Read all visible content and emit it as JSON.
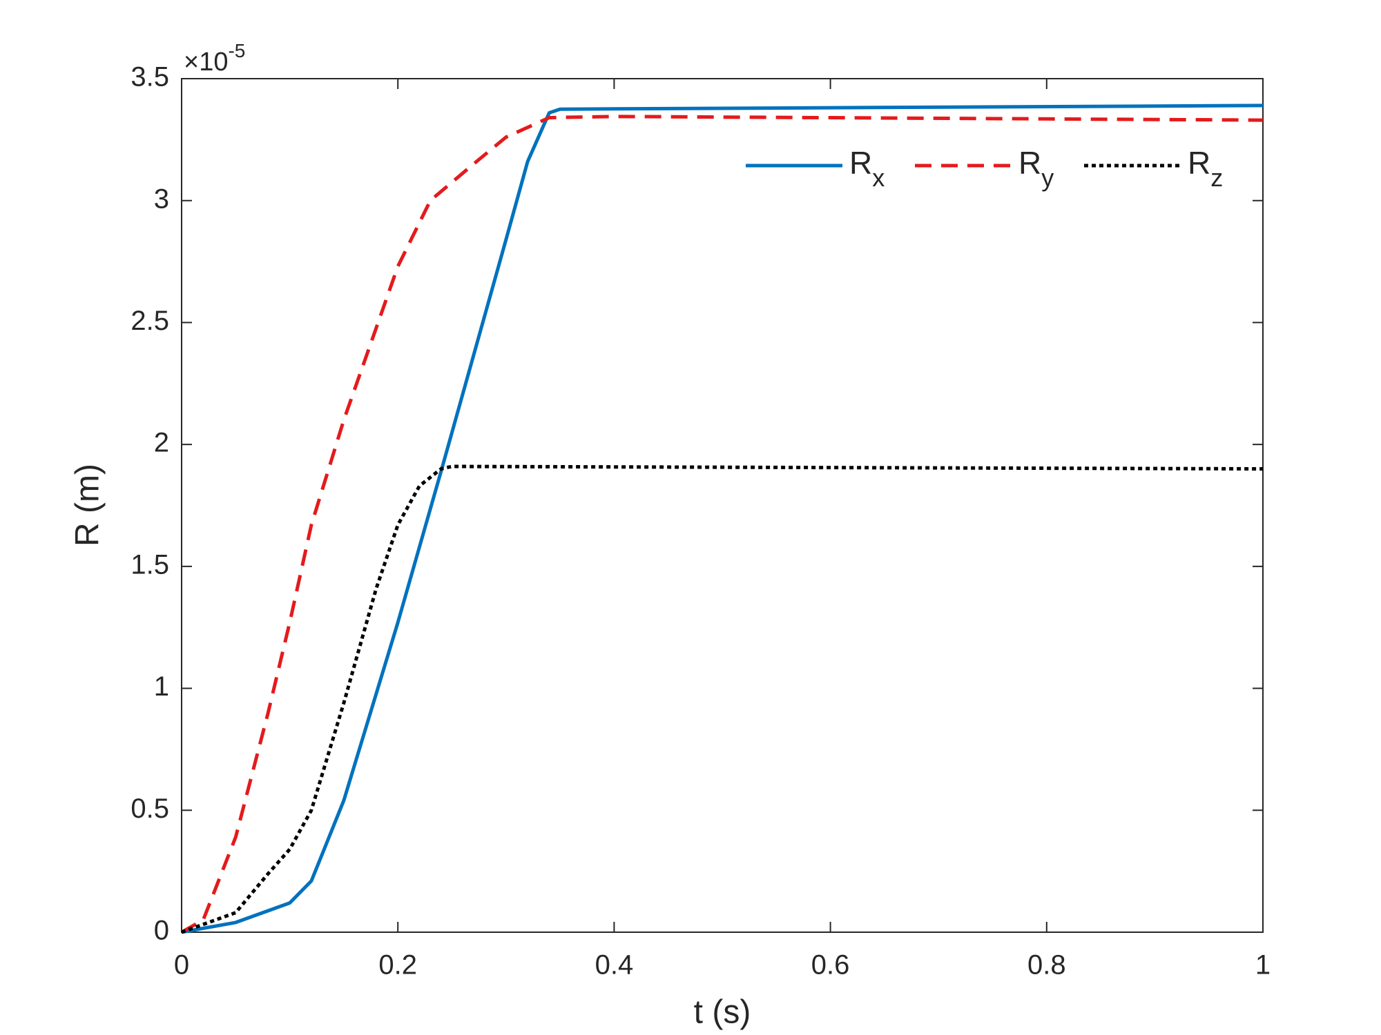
{
  "chart_data": {
    "type": "line",
    "xlabel": "t (s)",
    "ylabel": "R (m)",
    "y_multiplier_base": "×10",
    "y_multiplier_exponent": "-5",
    "xlim": [
      0,
      1
    ],
    "xticks": [
      0,
      0.2,
      0.4,
      0.6,
      0.8,
      1
    ],
    "ylim": [
      0,
      3.5
    ],
    "yticks": [
      0,
      0.5,
      1,
      1.5,
      2,
      2.5,
      3,
      3.5
    ],
    "grid": false,
    "legend": "upper right",
    "series": [
      {
        "name": "Rx",
        "color": "#0072bd",
        "dash": "solid",
        "x": [
          0,
          0.05,
          0.1,
          0.12,
          0.13,
          0.15,
          0.2,
          0.24,
          0.3,
          0.32,
          0.34,
          0.35,
          1
        ],
        "values": [
          0,
          0.04,
          0.12,
          0.21,
          0.32,
          0.54,
          1.27,
          1.89,
          2.84,
          3.16,
          3.36,
          3.375,
          3.39
        ]
      },
      {
        "name": "Ry",
        "color": "#e41a1c",
        "dash": "dashed",
        "x": [
          0,
          0.02,
          0.05,
          0.08,
          0.1,
          0.12,
          0.15,
          0.2,
          0.23,
          0.27,
          0.3,
          0.34,
          0.4,
          1
        ],
        "values": [
          0,
          0.05,
          0.39,
          0.9,
          1.27,
          1.67,
          2.1,
          2.73,
          3.0,
          3.15,
          3.26,
          3.34,
          3.345,
          3.33
        ]
      },
      {
        "name": "Rz",
        "color": "#000000",
        "dash": "dotted",
        "x": [
          0,
          0.05,
          0.08,
          0.1,
          0.12,
          0.15,
          0.18,
          0.2,
          0.22,
          0.24,
          0.25,
          1
        ],
        "values": [
          0,
          0.08,
          0.24,
          0.34,
          0.5,
          0.94,
          1.41,
          1.67,
          1.83,
          1.9,
          1.91,
          1.9
        ]
      }
    ]
  }
}
